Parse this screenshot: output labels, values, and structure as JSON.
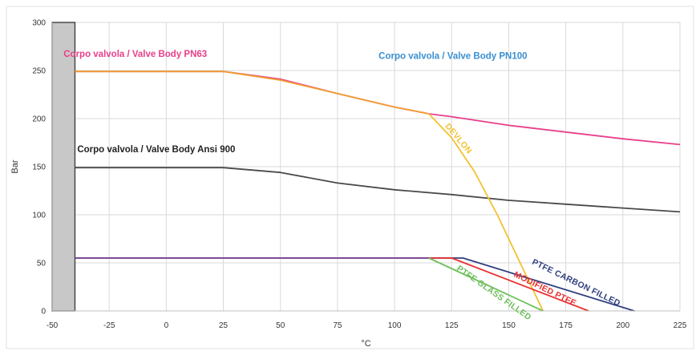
{
  "chart_data": {
    "type": "line",
    "xlabel": "°C",
    "ylabel": "Bar",
    "xlim": [
      -50,
      225
    ],
    "ylim": [
      0,
      300
    ],
    "x_ticks": [
      -50,
      -25,
      0,
      25,
      50,
      75,
      100,
      125,
      150,
      175,
      200,
      225
    ],
    "y_ticks": [
      0,
      50,
      100,
      150,
      200,
      250,
      300
    ],
    "grid": true,
    "shaded_region": {
      "x_start": -50,
      "x_end": -40,
      "color": "#c8c8c8"
    },
    "series": [
      {
        "key": "pn63",
        "color": "#e8408a",
        "points": [
          [
            -40,
            249
          ],
          [
            25,
            249
          ],
          [
            50,
            241
          ],
          [
            75,
            226
          ],
          [
            100,
            212
          ],
          [
            115,
            205
          ],
          [
            125,
            202
          ],
          [
            150,
            193
          ],
          [
            175,
            186
          ],
          [
            200,
            179
          ],
          [
            225,
            173
          ]
        ]
      },
      {
        "key": "pn100",
        "color": "#f0a030",
        "points": [
          [
            -40,
            249
          ],
          [
            25,
            249
          ],
          [
            50,
            240
          ],
          [
            75,
            226
          ],
          [
            100,
            212
          ],
          [
            115,
            205
          ]
        ]
      },
      {
        "key": "ansi900",
        "color": "#4a4a4a",
        "points": [
          [
            -40,
            149
          ],
          [
            25,
            149
          ],
          [
            50,
            144
          ],
          [
            75,
            133
          ],
          [
            100,
            126
          ],
          [
            125,
            121
          ],
          [
            150,
            115
          ],
          [
            175,
            111
          ],
          [
            200,
            107
          ],
          [
            225,
            103
          ]
        ]
      },
      {
        "key": "devlon",
        "color": "#f2c230",
        "points": [
          [
            115,
            205
          ],
          [
            125,
            180
          ],
          [
            135,
            145
          ],
          [
            145,
            100
          ],
          [
            155,
            50
          ],
          [
            165,
            0
          ]
        ]
      },
      {
        "key": "ptfe_carbon",
        "color": "#2f3f7f",
        "points": [
          [
            -40,
            55
          ],
          [
            130,
            55
          ],
          [
            205,
            0
          ]
        ]
      },
      {
        "key": "modified_ptfe",
        "color": "#e83030",
        "points": [
          [
            -40,
            55
          ],
          [
            125,
            55
          ],
          [
            185,
            0
          ]
        ]
      },
      {
        "key": "ptfe_glass",
        "color": "#6dbf5a",
        "points": [
          [
            -40,
            55
          ],
          [
            115,
            55
          ],
          [
            165,
            0
          ]
        ]
      },
      {
        "key": "purple_base",
        "color": "#7a3fa0",
        "points": [
          [
            -40,
            55
          ],
          [
            115,
            55
          ]
        ]
      }
    ],
    "annotations": [
      {
        "key": "ann_pn63",
        "text": "Corpo valvola / Valve Body PN63",
        "color": "#e8408a",
        "x": -45,
        "y": 264,
        "rotate": 0
      },
      {
        "key": "ann_pn100",
        "text": "Corpo valvola / Valve Body PN100",
        "color": "#3a8fd0",
        "x": 93,
        "y": 262,
        "rotate": 0
      },
      {
        "key": "ann_ansi",
        "text": "Corpo valvola / Valve Body Ansi 900",
        "color": "#222222",
        "x": -39,
        "y": 165,
        "rotate": 0
      },
      {
        "key": "ann_devlon",
        "text": "DEVLON",
        "color": "#f2c230",
        "x": 122,
        "y": 192,
        "rotate": 50
      },
      {
        "key": "ann_carbon",
        "text": "PTFE CARBON FILLED",
        "color": "#2f3f7f",
        "x": 160,
        "y": 49,
        "rotate": 26
      },
      {
        "key": "ann_modified",
        "text": "MODIFIED PTFE",
        "color": "#e83030",
        "x": 152,
        "y": 36,
        "rotate": 26
      },
      {
        "key": "ann_glass",
        "text": "PTFE GLASS FILLED",
        "color": "#6dbf5a",
        "x": 127,
        "y": 43,
        "rotate": 35
      }
    ]
  }
}
